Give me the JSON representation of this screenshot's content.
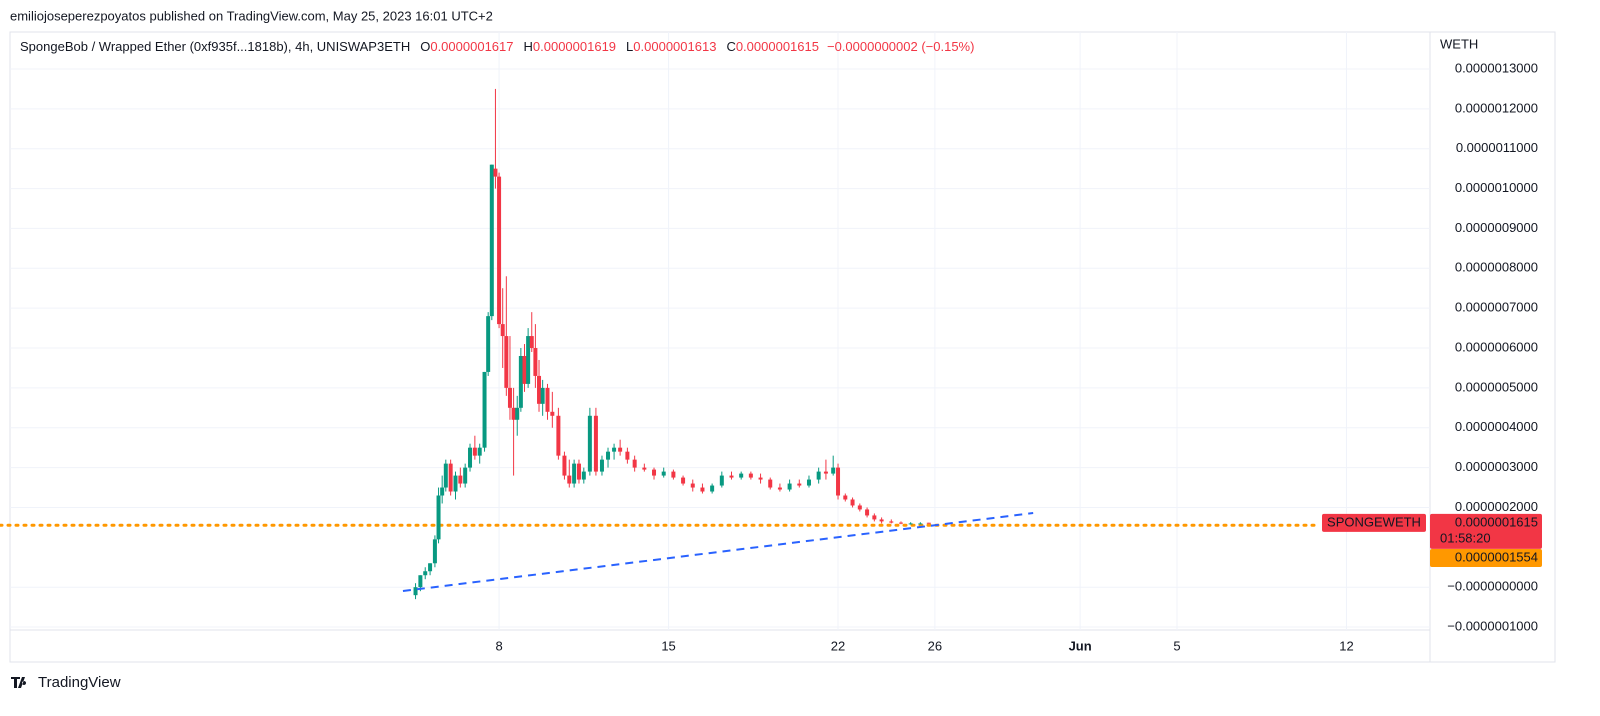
{
  "header": {
    "publisher": "emiliojoseperezpoyatos published on TradingView.com, May 25, 2023 16:01 UTC+2",
    "brand": "TradingView"
  },
  "chart_data": {
    "type": "candlestick",
    "title": "SpongeBob / Wrapped Ether (0xf935f...1818b), 4h, UNISWAP3ETH",
    "ohlc_legend": [
      {
        "key": "O",
        "text": "0.0000001617"
      },
      {
        "key": "H",
        "text": "0.0000001619"
      },
      {
        "key": "L",
        "text": "0.0000001613"
      },
      {
        "key": "C",
        "text": "0.0000001615"
      }
    ],
    "change": "−0.0000000002 (−0.15%)",
    "y_axis_label": "WETH",
    "x": [
      4.55,
      4.75,
      4.95,
      5.15,
      5.35,
      5.5,
      5.65,
      5.8,
      6.0,
      6.2,
      6.4,
      6.6,
      6.8,
      7.0,
      7.2,
      7.4,
      7.55,
      7.7,
      7.85,
      8.0,
      8.15,
      8.3,
      8.45,
      8.6,
      8.75,
      8.9,
      9.05,
      9.2,
      9.35,
      9.5,
      9.65,
      9.8,
      10.0,
      10.2,
      10.45,
      10.7,
      10.9,
      11.1,
      11.3,
      11.5,
      11.75,
      12.0,
      12.25,
      12.5,
      12.75,
      13.0,
      13.3,
      13.6,
      14.0,
      14.4,
      14.8,
      15.2,
      15.6,
      16.0,
      16.4,
      16.8,
      17.2,
      17.6,
      18.0,
      18.4,
      18.8,
      19.2,
      19.6,
      20.0,
      20.4,
      20.8,
      21.2,
      21.5,
      21.8,
      22.0,
      22.3,
      22.6,
      22.9,
      23.2,
      23.5,
      23.8,
      24.2,
      24.6,
      25.0,
      25.4,
      25.75
    ],
    "open": [
      -2e-08,
      0,
      3e-08,
      4e-08,
      6e-08,
      1.2e-07,
      2.3e-07,
      2.5e-07,
      3.1e-07,
      2.4e-07,
      2.8e-07,
      2.6e-07,
      3e-07,
      3.5e-07,
      3.3e-07,
      3.5e-07,
      5.4e-07,
      6.8e-07,
      1.05e-06,
      1.03e-06,
      6.6e-07,
      6.3e-07,
      5e-07,
      4.5e-07,
      4.2e-07,
      4.5e-07,
      5.8e-07,
      5.1e-07,
      6.3e-07,
      6e-07,
      5.3e-07,
      4.6e-07,
      5e-07,
      4.4e-07,
      4.3e-07,
      3.3e-07,
      2.8e-07,
      2.6e-07,
      3.1e-07,
      2.7e-07,
      2.9e-07,
      4.3e-07,
      2.9e-07,
      3.2e-07,
      3.4e-07,
      3.5e-07,
      3.4e-07,
      3.2e-07,
      3e-07,
      2.95e-07,
      2.8e-07,
      2.9e-07,
      2.75e-07,
      2.6e-07,
      2.5e-07,
      2.4e-07,
      2.55e-07,
      2.8e-07,
      2.75e-07,
      2.85e-07,
      2.75e-07,
      2.7e-07,
      2.5e-07,
      2.45e-07,
      2.6e-07,
      2.55e-07,
      2.7e-07,
      2.9e-07,
      2.85e-07,
      3e-07,
      2.3e-07,
      2.2e-07,
      2.05e-07,
      1.95e-07,
      1.8e-07,
      1.7e-07,
      1.65e-07,
      1.62e-07,
      1.6e-07,
      1.6e-07,
      1.617e-07
    ],
    "high": [
      1e-08,
      3e-08,
      5e-08,
      6e-08,
      1.3e-07,
      2.5e-07,
      2.8e-07,
      3.2e-07,
      3.2e-07,
      2.9e-07,
      3e-07,
      3.1e-07,
      3.6e-07,
      3.8e-07,
      3.6e-07,
      5.4e-07,
      6.9e-07,
      1.06e-06,
      1.25e-06,
      1.04e-06,
      7.5e-07,
      7.8e-07,
      6.3e-07,
      5e-07,
      4.8e-07,
      6e-07,
      6.1e-07,
      6.5e-07,
      6.9e-07,
      6.6e-07,
      5.7e-07,
      5.2e-07,
      5.1e-07,
      4.9e-07,
      4.5e-07,
      3.4e-07,
      3.2e-07,
      3.2e-07,
      3.2e-07,
      3e-07,
      4.5e-07,
      4.5e-07,
      3.3e-07,
      3.5e-07,
      3.6e-07,
      3.7e-07,
      3.5e-07,
      3.3e-07,
      3.1e-07,
      3e-07,
      3e-07,
      2.95e-07,
      2.8e-07,
      2.7e-07,
      2.6e-07,
      2.6e-07,
      2.9e-07,
      2.9e-07,
      2.9e-07,
      2.9e-07,
      2.85e-07,
      2.75e-07,
      2.6e-07,
      2.7e-07,
      2.7e-07,
      2.8e-07,
      3e-07,
      3.2e-07,
      3.3e-07,
      3.1e-07,
      2.35e-07,
      2.25e-07,
      2.1e-07,
      2e-07,
      1.85e-07,
      1.75e-07,
      1.7e-07,
      1.65e-07,
      1.63e-07,
      1.63e-07,
      1.619e-07
    ],
    "low": [
      -3e-08,
      -1e-08,
      2e-08,
      3e-08,
      5e-08,
      1.1e-07,
      2.1e-07,
      2.4e-07,
      2.3e-07,
      2.2e-07,
      2.5e-07,
      2.5e-07,
      2.9e-07,
      3.2e-07,
      3.1e-07,
      3.4e-07,
      5.3e-07,
      6.7e-07,
      1e-06,
      6.5e-07,
      5.5e-07,
      4.8e-07,
      4.2e-07,
      2.8e-07,
      3.8e-07,
      4.4e-07,
      4.9e-07,
      5e-07,
      5.9e-07,
      5e-07,
      4.4e-07,
      4.3e-07,
      4.2e-07,
      4e-07,
      3.2e-07,
      2.7e-07,
      2.5e-07,
      2.5e-07,
      2.6e-07,
      2.6e-07,
      2.8e-07,
      2.8e-07,
      2.8e-07,
      3e-07,
      3.2e-07,
      3.3e-07,
      3.1e-07,
      2.9e-07,
      2.9e-07,
      2.7e-07,
      2.75e-07,
      2.7e-07,
      2.55e-07,
      2.4e-07,
      2.35e-07,
      2.35e-07,
      2.5e-07,
      2.7e-07,
      2.7e-07,
      2.7e-07,
      2.6e-07,
      2.45e-07,
      2.4e-07,
      2.4e-07,
      2.5e-07,
      2.5e-07,
      2.6e-07,
      2.7e-07,
      2.8e-07,
      2.2e-07,
      2.15e-07,
      2e-07,
      1.9e-07,
      1.75e-07,
      1.65e-07,
      1.6e-07,
      1.6e-07,
      1.58e-07,
      1.57e-07,
      1.58e-07,
      1.613e-07
    ],
    "close": [
      0,
      3e-08,
      4e-08,
      6e-08,
      1.2e-07,
      2.3e-07,
      2.5e-07,
      3.1e-07,
      2.4e-07,
      2.8e-07,
      2.6e-07,
      3e-07,
      3.5e-07,
      3.3e-07,
      3.5e-07,
      5.4e-07,
      6.8e-07,
      1.06e-06,
      1.03e-06,
      6.6e-07,
      6.3e-07,
      5e-07,
      4.5e-07,
      4.2e-07,
      4.5e-07,
      5.8e-07,
      5.1e-07,
      6.3e-07,
      6e-07,
      5.3e-07,
      4.6e-07,
      5e-07,
      4.4e-07,
      4.3e-07,
      3.3e-07,
      2.8e-07,
      2.6e-07,
      3.1e-07,
      2.7e-07,
      2.9e-07,
      4.3e-07,
      2.9e-07,
      3.2e-07,
      3.4e-07,
      3.5e-07,
      3.4e-07,
      3.2e-07,
      3e-07,
      2.95e-07,
      2.8e-07,
      2.9e-07,
      2.75e-07,
      2.6e-07,
      2.5e-07,
      2.4e-07,
      2.55e-07,
      2.8e-07,
      2.75e-07,
      2.85e-07,
      2.75e-07,
      2.7e-07,
      2.5e-07,
      2.45e-07,
      2.6e-07,
      2.55e-07,
      2.7e-07,
      2.9e-07,
      2.85e-07,
      3e-07,
      2.3e-07,
      2.2e-07,
      2.05e-07,
      1.95e-07,
      1.8e-07,
      1.7e-07,
      1.65e-07,
      1.62e-07,
      1.6e-07,
      1.6e-07,
      1.6e-07,
      1.615e-07
    ],
    "up_color": "#089981",
    "down_color": "#f23645",
    "xlim": [
      -12.2,
      46.45
    ],
    "xticks": [
      8,
      15,
      22,
      26,
      {
        "value": 32,
        "label": "Jun"
      },
      {
        "value": 36,
        "label": "5"
      },
      {
        "value": 43,
        "label": "12"
      }
    ],
    "ylim": [
      -1.074e-07,
      1.3928e-06
    ],
    "yticks": [
      {
        "value": 1.3e-06,
        "label": "0.0000013000"
      },
      {
        "value": 1.2e-06,
        "label": "0.0000012000"
      },
      {
        "value": 1.1e-06,
        "label": "0.0000011000"
      },
      {
        "value": 1e-06,
        "label": "0.0000010000"
      },
      {
        "value": 9e-07,
        "label": "0.0000009000"
      },
      {
        "value": 8e-07,
        "label": "0.0000008000"
      },
      {
        "value": 7e-07,
        "label": "0.0000007000"
      },
      {
        "value": 6e-07,
        "label": "0.0000006000"
      },
      {
        "value": 5e-07,
        "label": "0.0000005000"
      },
      {
        "value": 4e-07,
        "label": "0.0000004000"
      },
      {
        "value": 3e-07,
        "label": "0.0000003000"
      },
      {
        "value": 2e-07,
        "label": "0.0000002000"
      },
      {
        "value": 0,
        "label": "−0.0000000000"
      },
      {
        "value": -1e-07,
        "label": "−0.0000001000"
      }
    ],
    "grid": true,
    "last_price": {
      "symbol": "SPONGEWETH",
      "value": 1.615e-07,
      "label": "0.0000001615",
      "countdown": "01:58:20",
      "color": "#f23645"
    },
    "horizontal_line": {
      "value": 1.554e-07,
      "label": "0.0000001554",
      "color": "#ff9800"
    },
    "trendline": {
      "x": [
        4.03,
        30.06
      ],
      "values": [
        -9.6e-09,
        1.86e-07
      ],
      "color": "#2962ff"
    }
  }
}
